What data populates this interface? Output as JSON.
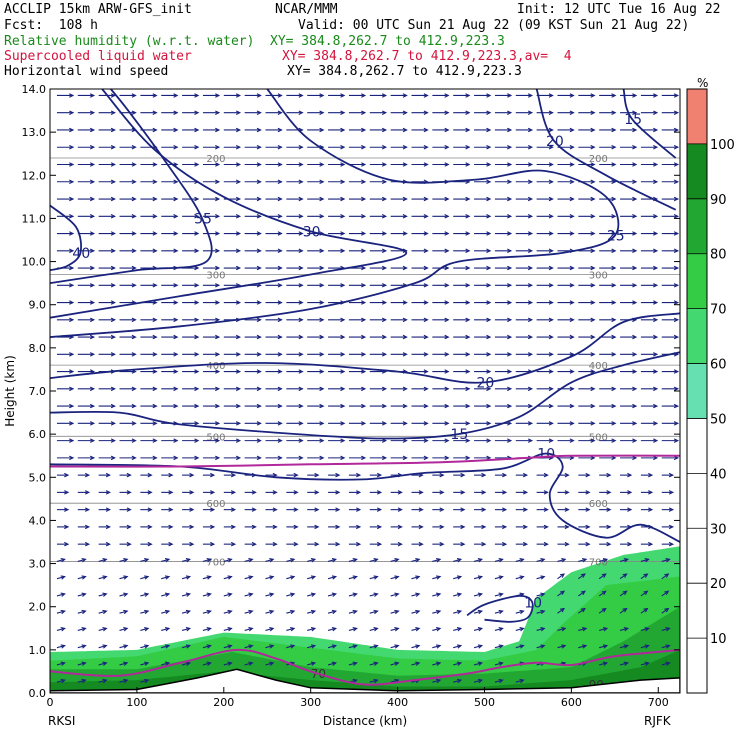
{
  "header": {
    "model": "ACCLIP 15km ARW-GFS_init",
    "fcst": "Fcst:  108 h",
    "center": "NCAR/MMM",
    "init": "Init: 12 UTC Tue 16 Aug 22",
    "valid": "Valid: 00 UTC Sun 21 Aug 22 (09 KST Sun 21 Aug 22)",
    "rh_label": "Relative humidity (w.r.t. water)",
    "rh_xy": "XY= 384.8,262.7 to 412.9,223.3",
    "slw_label": "Supercooled liquid water",
    "slw_xy": "XY= 384.8,262.7 to 412.9,223.3,av=  4",
    "wind_label": "Horizontal wind speed",
    "wind_xy": "XY= 384.8,262.7 to 412.9,223.3",
    "colors": {
      "rh": "#1a8a1a",
      "slw": "#d4143c",
      "wind": "#000000"
    }
  },
  "chart_data": {
    "type": "cross-section",
    "xlabel": "Distance (km)",
    "ylabel": "Height (km)",
    "xlim": [
      0,
      725
    ],
    "ylim": [
      0,
      14
    ],
    "x_ticks": [
      "0",
      "100",
      "200",
      "300",
      "400",
      "500",
      "600",
      "700"
    ],
    "y_ticks": [
      "0.0",
      "1.0",
      "2.0",
      "3.0",
      "4.0",
      "5.0",
      "6.0",
      "7.0",
      "8.0",
      "9.0",
      "10.0",
      "11.0",
      "12.0",
      "13.0",
      "14.0"
    ],
    "start_label": "RKSI",
    "end_label": "RJFK",
    "colorbar": {
      "unit": "%",
      "ticks": [
        "10",
        "20",
        "30",
        "40",
        "50",
        "60",
        "70",
        "80",
        "90",
        "100"
      ],
      "bands": [
        {
          "from": 50,
          "to": 60,
          "color": "#66e0b0"
        },
        {
          "from": 60,
          "to": 70,
          "color": "#44d870"
        },
        {
          "from": 70,
          "to": 80,
          "color": "#33cc44"
        },
        {
          "from": 80,
          "to": 90,
          "color": "#22a832"
        },
        {
          "from": 90,
          "to": 100,
          "color": "#158a20"
        },
        {
          "from": 100,
          "to": 110,
          "color": "#f08070"
        }
      ]
    },
    "pressure_levels": [
      {
        "label": "200",
        "heights_km": [
          12.4,
          12.4
        ]
      },
      {
        "label": "300",
        "heights_km": [
          9.7,
          9.7
        ]
      },
      {
        "label": "400",
        "heights_km": [
          7.6,
          7.6
        ]
      },
      {
        "label": "500",
        "heights_km": [
          5.95,
          5.95
        ]
      },
      {
        "label": "600",
        "heights_km": [
          4.4,
          4.4
        ]
      },
      {
        "label": "700",
        "heights_km": [
          3.05,
          3.05
        ]
      }
    ],
    "wind_speed_contours": [
      {
        "label": "15",
        "points": [
          [
            0,
            6.5
          ],
          [
            80,
            6.5
          ],
          [
            140,
            6.25
          ],
          [
            250,
            6.05
          ],
          [
            380,
            5.9
          ],
          [
            470,
            6.0
          ],
          [
            540,
            6.4
          ],
          [
            600,
            7.2
          ],
          [
            660,
            7.6
          ],
          [
            725,
            7.9
          ]
        ]
      },
      {
        "label": "20",
        "points": [
          [
            0,
            7.3
          ],
          [
            100,
            7.5
          ],
          [
            250,
            7.65
          ],
          [
            400,
            7.45
          ],
          [
            500,
            7.2
          ],
          [
            600,
            7.8
          ],
          [
            660,
            8.6
          ],
          [
            725,
            8.8
          ]
        ]
      },
      {
        "label": "25",
        "points": [
          [
            0,
            8.25
          ],
          [
            150,
            8.5
          ],
          [
            300,
            8.9
          ],
          [
            420,
            9.5
          ],
          [
            470,
            10.0
          ],
          [
            590,
            10.2
          ],
          [
            650,
            10.6
          ],
          [
            640,
            11.5
          ],
          [
            570,
            12.1
          ],
          [
            490,
            11.9
          ],
          [
            390,
            11.9
          ],
          [
            300,
            12.8
          ],
          [
            250,
            14.0
          ]
        ]
      },
      {
        "label": "30",
        "points": [
          [
            0,
            8.7
          ],
          [
            150,
            9.2
          ],
          [
            300,
            9.7
          ],
          [
            410,
            10.2
          ],
          [
            300,
            10.7
          ],
          [
            200,
            11.5
          ],
          [
            120,
            12.6
          ],
          [
            60,
            14.0
          ]
        ]
      },
      {
        "label": "35",
        "points": [
          [
            0,
            9.5
          ],
          [
            100,
            9.8
          ],
          [
            180,
            10.0
          ],
          [
            175,
            11.0
          ],
          [
            130,
            12.4
          ],
          [
            90,
            13.5
          ],
          [
            70,
            14.0
          ]
        ]
      },
      {
        "label": "40",
        "points": [
          [
            0,
            11.3
          ],
          [
            30,
            10.8
          ],
          [
            35,
            10.2
          ],
          [
            20,
            9.9
          ],
          [
            0,
            9.8
          ]
        ]
      },
      {
        "label": "15",
        "points": [
          [
            720,
            12.4
          ],
          [
            670,
            13.3
          ],
          [
            660,
            14.0
          ]
        ]
      },
      {
        "label": "20",
        "points": [
          [
            720,
            11.2
          ],
          [
            640,
            12.0
          ],
          [
            580,
            12.8
          ],
          [
            560,
            14.0
          ]
        ]
      },
      {
        "label": "10",
        "points": [
          [
            0,
            5.3
          ],
          [
            150,
            5.25
          ],
          [
            260,
            5.0
          ],
          [
            360,
            4.95
          ],
          [
            430,
            5.1
          ],
          [
            520,
            5.2
          ],
          [
            570,
            5.55
          ],
          [
            590,
            5.25
          ],
          [
            575,
            4.6
          ],
          [
            590,
            4.0
          ],
          [
            640,
            3.6
          ],
          [
            680,
            3.9
          ],
          [
            725,
            3.5
          ]
        ]
      },
      {
        "label": "10",
        "points": [
          [
            480,
            1.8
          ],
          [
            500,
            2.05
          ],
          [
            540,
            2.25
          ],
          [
            555,
            2.1
          ],
          [
            550,
            1.75
          ],
          [
            530,
            1.65
          ],
          [
            500,
            1.7
          ]
        ]
      }
    ],
    "slw_contours": [
      {
        "label": "",
        "points": [
          [
            0,
            5.25
          ],
          [
            150,
            5.25
          ],
          [
            300,
            5.3
          ],
          [
            450,
            5.35
          ],
          [
            550,
            5.45
          ],
          [
            600,
            5.5
          ],
          [
            725,
            5.5
          ]
        ]
      },
      {
        "label": "",
        "points": [
          [
            0,
            0.5
          ],
          [
            80,
            0.4
          ],
          [
            150,
            0.7
          ],
          [
            215,
            1.0
          ],
          [
            260,
            0.8
          ],
          [
            300,
            0.5
          ],
          [
            360,
            0.2
          ],
          [
            420,
            0.3
          ],
          [
            480,
            0.45
          ],
          [
            520,
            0.6
          ],
          [
            560,
            0.7
          ],
          [
            600,
            0.65
          ],
          [
            650,
            0.85
          ],
          [
            725,
            1.0
          ]
        ]
      }
    ],
    "rh_fill": {
      "bands": [
        {
          "value": 60,
          "top": [
            [
              0,
              0.95
            ],
            [
              100,
              1.0
            ],
            [
              200,
              1.4
            ],
            [
              300,
              1.3
            ],
            [
              400,
              1.0
            ],
            [
              500,
              0.95
            ],
            [
              540,
              1.2
            ],
            [
              560,
              2.2
            ],
            [
              600,
              2.8
            ],
            [
              660,
              3.2
            ],
            [
              725,
              3.4
            ]
          ]
        },
        {
          "value": 70,
          "top": [
            [
              0,
              0.75
            ],
            [
              100,
              0.85
            ],
            [
              200,
              1.3
            ],
            [
              300,
              1.05
            ],
            [
              400,
              0.8
            ],
            [
              500,
              0.75
            ],
            [
              560,
              1.0
            ],
            [
              590,
              1.6
            ],
            [
              640,
              2.5
            ],
            [
              725,
              2.7
            ]
          ]
        },
        {
          "value": 80,
          "top": [
            [
              0,
              0.55
            ],
            [
              100,
              0.55
            ],
            [
              210,
              0.95
            ],
            [
              300,
              0.6
            ],
            [
              400,
              0.4
            ],
            [
              500,
              0.45
            ],
            [
              600,
              0.6
            ],
            [
              660,
              1.2
            ],
            [
              725,
              2.0
            ]
          ]
        },
        {
          "value": 90,
          "top": [
            [
              0,
              0.25
            ],
            [
              100,
              0.3
            ],
            [
              200,
              0.5
            ],
            [
              300,
              0.3
            ],
            [
              400,
              0.15
            ],
            [
              500,
              0.15
            ],
            [
              600,
              0.3
            ],
            [
              680,
              0.6
            ],
            [
              725,
              1.0
            ]
          ]
        }
      ],
      "labels": [
        {
          "text": "70",
          "x": 300,
          "y": 0.3
        },
        {
          "text": "90",
          "x": 620,
          "y": 0.05
        }
      ]
    },
    "terrain": [
      [
        0,
        0.05
      ],
      [
        100,
        0.08
      ],
      [
        170,
        0.35
      ],
      [
        215,
        0.55
      ],
      [
        260,
        0.3
      ],
      [
        300,
        0.12
      ],
      [
        400,
        0.05
      ],
      [
        500,
        0.08
      ],
      [
        600,
        0.12
      ],
      [
        680,
        0.3
      ],
      [
        725,
        0.35
      ]
    ],
    "wind_arrow_scale": "speed"
  }
}
